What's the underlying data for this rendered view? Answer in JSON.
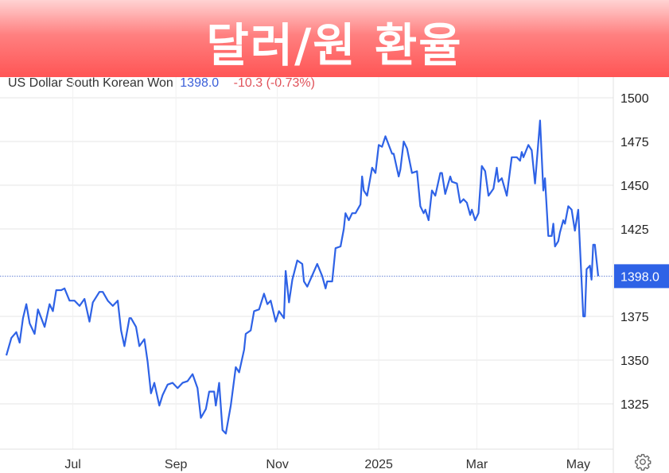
{
  "banner": {
    "title": "달러/원 환율"
  },
  "header": {
    "instrument": "US Dollar South Korean Won",
    "price": "1398.0",
    "change": "-10.3 (-0.73%)"
  },
  "colors": {
    "line": "#2e62e6",
    "price": "#3b5fd9",
    "change": "#e0525a",
    "badge": "#2e62e6",
    "banner": "#ff5555"
  },
  "settings": {
    "icon": "gear-icon"
  },
  "chart_data": {
    "type": "line",
    "title": "",
    "xlabel": "",
    "ylabel": "",
    "ylim": [
      1300,
      1505
    ],
    "xlim": [
      "2024-05-22",
      "2025-05-13"
    ],
    "grid": true,
    "y_axis_position": "right",
    "y_ticks": [
      1325,
      1350,
      1375,
      1425,
      1450,
      1475,
      1500
    ],
    "x_ticks": [
      {
        "label": "Jul",
        "date": "2024-07-01"
      },
      {
        "label": "Sep",
        "date": "2024-09-01"
      },
      {
        "label": "Nov",
        "date": "2024-11-01"
      },
      {
        "label": "2025",
        "date": "2025-01-01"
      },
      {
        "label": "Mar",
        "date": "2025-03-01"
      },
      {
        "label": "May",
        "date": "2025-05-01"
      }
    ],
    "last_value": 1398.0,
    "last_value_label": "1398.0",
    "series": [
      {
        "points": [
          [
            "2024-05-22",
            1352.7
          ],
          [
            "2024-05-25",
            1362.7
          ],
          [
            "2024-05-28",
            1366
          ],
          [
            "2024-05-30",
            1360
          ],
          [
            "2024-06-01",
            1374
          ],
          [
            "2024-06-03",
            1382
          ],
          [
            "2024-06-05",
            1371
          ],
          [
            "2024-06-08",
            1365
          ],
          [
            "2024-06-10",
            1379
          ],
          [
            "2024-06-12",
            1374
          ],
          [
            "2024-06-14",
            1369
          ],
          [
            "2024-06-17",
            1382
          ],
          [
            "2024-06-19",
            1378
          ],
          [
            "2024-06-21",
            1390
          ],
          [
            "2024-06-24",
            1390
          ],
          [
            "2024-06-26",
            1391
          ],
          [
            "2024-06-29",
            1384
          ],
          [
            "2024-07-02",
            1384
          ],
          [
            "2024-07-05",
            1381
          ],
          [
            "2024-07-08",
            1385
          ],
          [
            "2024-07-11",
            1372
          ],
          [
            "2024-07-13",
            1383
          ],
          [
            "2024-07-17",
            1389
          ],
          [
            "2024-07-19",
            1389
          ],
          [
            "2024-07-22",
            1384
          ],
          [
            "2024-07-25",
            1381
          ],
          [
            "2024-07-28",
            1384
          ],
          [
            "2024-07-30",
            1367
          ],
          [
            "2024-08-01",
            1358
          ],
          [
            "2024-08-04",
            1374
          ],
          [
            "2024-08-05",
            1374
          ],
          [
            "2024-08-08",
            1369
          ],
          [
            "2024-08-10",
            1358
          ],
          [
            "2024-08-13",
            1362
          ],
          [
            "2024-08-15",
            1349
          ],
          [
            "2024-08-17",
            1331
          ],
          [
            "2024-08-19",
            1337
          ],
          [
            "2024-08-22",
            1324
          ],
          [
            "2024-08-24",
            1330
          ],
          [
            "2024-08-27",
            1336
          ],
          [
            "2024-08-30",
            1337
          ],
          [
            "2024-09-02",
            1334
          ],
          [
            "2024-09-05",
            1337
          ],
          [
            "2024-09-08",
            1338
          ],
          [
            "2024-09-11",
            1342
          ],
          [
            "2024-09-14",
            1334
          ],
          [
            "2024-09-16",
            1317
          ],
          [
            "2024-09-19",
            1322
          ],
          [
            "2024-09-21",
            1332
          ],
          [
            "2024-09-24",
            1332
          ],
          [
            "2024-09-25",
            1324
          ],
          [
            "2024-09-27",
            1337
          ],
          [
            "2024-09-29",
            1310
          ],
          [
            "2024-10-01",
            1308
          ],
          [
            "2024-10-04",
            1324
          ],
          [
            "2024-10-07",
            1346
          ],
          [
            "2024-10-09",
            1343
          ],
          [
            "2024-10-12",
            1356
          ],
          [
            "2024-10-13",
            1365
          ],
          [
            "2024-10-16",
            1367
          ],
          [
            "2024-10-18",
            1378
          ],
          [
            "2024-10-21",
            1379
          ],
          [
            "2024-10-24",
            1388
          ],
          [
            "2024-10-26",
            1382
          ],
          [
            "2024-10-28",
            1384
          ],
          [
            "2024-10-31",
            1372
          ],
          [
            "2024-11-02",
            1378
          ],
          [
            "2024-11-05",
            1374
          ],
          [
            "2024-11-06",
            1401
          ],
          [
            "2024-11-08",
            1383
          ],
          [
            "2024-11-10",
            1396
          ],
          [
            "2024-11-13",
            1407
          ],
          [
            "2024-11-16",
            1405
          ],
          [
            "2024-11-17",
            1395
          ],
          [
            "2024-11-19",
            1392
          ],
          [
            "2024-11-25",
            1405
          ],
          [
            "2024-11-28",
            1398
          ],
          [
            "2024-11-30",
            1391
          ],
          [
            "2024-12-01",
            1395
          ],
          [
            "2024-12-04",
            1395
          ],
          [
            "2024-12-06",
            1414
          ],
          [
            "2024-12-09",
            1415
          ],
          [
            "2024-12-11",
            1425
          ],
          [
            "2024-12-12",
            1434
          ],
          [
            "2024-12-14",
            1430
          ],
          [
            "2024-12-16",
            1434
          ],
          [
            "2024-12-18",
            1434
          ],
          [
            "2024-12-21",
            1439
          ],
          [
            "2024-12-22",
            1455
          ],
          [
            "2024-12-23",
            1447
          ],
          [
            "2024-12-25",
            1444
          ],
          [
            "2024-12-28",
            1460
          ],
          [
            "2024-12-30",
            1457
          ],
          [
            "2025-01-01",
            1473
          ],
          [
            "2025-01-03",
            1472
          ],
          [
            "2025-01-05",
            1478
          ],
          [
            "2025-01-09",
            1468
          ],
          [
            "2025-01-10",
            1468
          ],
          [
            "2025-01-13",
            1455
          ],
          [
            "2025-01-14",
            1459
          ],
          [
            "2025-01-16",
            1475
          ],
          [
            "2025-01-18",
            1471
          ],
          [
            "2025-01-21",
            1457
          ],
          [
            "2025-01-24",
            1458
          ],
          [
            "2025-01-26",
            1438
          ],
          [
            "2025-01-28",
            1434
          ],
          [
            "2025-01-29",
            1436
          ],
          [
            "2025-01-31",
            1430
          ],
          [
            "2025-02-02",
            1447
          ],
          [
            "2025-02-04",
            1444
          ],
          [
            "2025-02-07",
            1457
          ],
          [
            "2025-02-08",
            1457
          ],
          [
            "2025-02-10",
            1445
          ],
          [
            "2025-02-13",
            1455
          ],
          [
            "2025-02-14",
            1452
          ],
          [
            "2025-02-17",
            1451
          ],
          [
            "2025-02-19",
            1440
          ],
          [
            "2025-02-21",
            1442
          ],
          [
            "2025-02-23",
            1440
          ],
          [
            "2025-02-25",
            1433
          ],
          [
            "2025-02-26",
            1436
          ],
          [
            "2025-02-28",
            1430
          ],
          [
            "2025-03-02",
            1434
          ],
          [
            "2025-03-04",
            1461
          ],
          [
            "2025-03-06",
            1458
          ],
          [
            "2025-03-08",
            1444
          ],
          [
            "2025-03-11",
            1448
          ],
          [
            "2025-03-13",
            1460
          ],
          [
            "2025-03-14",
            1452
          ],
          [
            "2025-03-16",
            1454
          ],
          [
            "2025-03-19",
            1444
          ],
          [
            "2025-03-22",
            1466
          ],
          [
            "2025-03-25",
            1466
          ],
          [
            "2025-03-27",
            1464
          ],
          [
            "2025-03-28",
            1469
          ],
          [
            "2025-03-29",
            1466
          ],
          [
            "2025-04-01",
            1473
          ],
          [
            "2025-04-03",
            1470
          ],
          [
            "2025-04-05",
            1451
          ],
          [
            "2025-04-08",
            1487
          ],
          [
            "2025-04-10",
            1447
          ],
          [
            "2025-04-11",
            1454
          ],
          [
            "2025-04-13",
            1421
          ],
          [
            "2025-04-15",
            1421
          ],
          [
            "2025-04-16",
            1428
          ],
          [
            "2025-04-17",
            1415
          ],
          [
            "2025-04-19",
            1418
          ],
          [
            "2025-04-20",
            1423
          ],
          [
            "2025-04-22",
            1430
          ],
          [
            "2025-04-23",
            1428
          ],
          [
            "2025-04-25",
            1438
          ],
          [
            "2025-04-27",
            1436
          ],
          [
            "2025-04-29",
            1424
          ],
          [
            "2025-05-01",
            1436
          ],
          [
            "2025-05-04",
            1375
          ],
          [
            "2025-05-05",
            1375
          ],
          [
            "2025-05-06",
            1402
          ],
          [
            "2025-05-08",
            1404
          ],
          [
            "2025-05-09",
            1396
          ],
          [
            "2025-05-10",
            1416
          ],
          [
            "2025-05-11",
            1416
          ],
          [
            "2025-05-13",
            1398
          ]
        ]
      }
    ]
  }
}
